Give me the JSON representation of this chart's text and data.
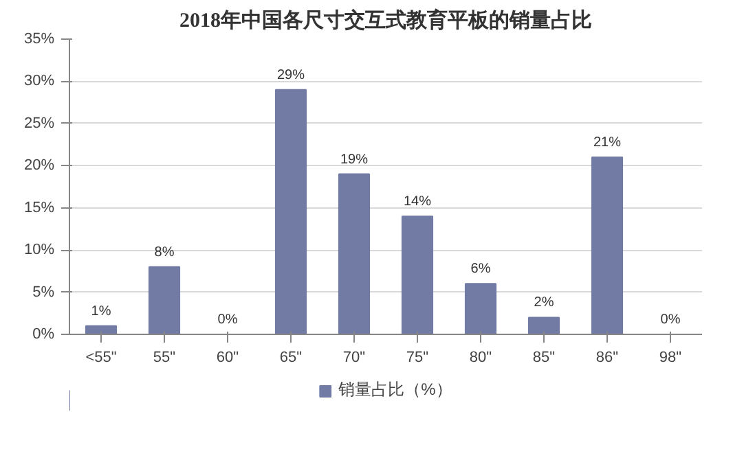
{
  "chart_data": {
    "type": "bar",
    "title": "2018年中国各尺寸交互式教育平板的销量占比",
    "categories": [
      "<55\"",
      "55\"",
      "60\"",
      "65\"",
      "70\"",
      "75\"",
      "80\"",
      "85\"",
      "86\"",
      "98\""
    ],
    "series": [
      {
        "name": "销量占比（%）",
        "color": "#717ba3",
        "values": [
          1,
          8,
          0,
          29,
          19,
          14,
          6,
          2,
          21,
          0
        ],
        "value_labels": [
          "1%",
          "8%",
          "0%",
          "29%",
          "19%",
          "14%",
          "6%",
          "2%",
          "21%",
          "0%"
        ]
      }
    ],
    "ylim": [
      0,
      35
    ],
    "yticks": [
      {
        "value": 0,
        "label": "0%"
      },
      {
        "value": 5,
        "label": "5%"
      },
      {
        "value": 10,
        "label": "10%"
      },
      {
        "value": 15,
        "label": "15%"
      },
      {
        "value": 20,
        "label": "20%"
      },
      {
        "value": 25,
        "label": "25%"
      },
      {
        "value": 30,
        "label": "30%"
      },
      {
        "value": 35,
        "label": "35%"
      }
    ],
    "grid": "y",
    "legend": "bottom"
  }
}
